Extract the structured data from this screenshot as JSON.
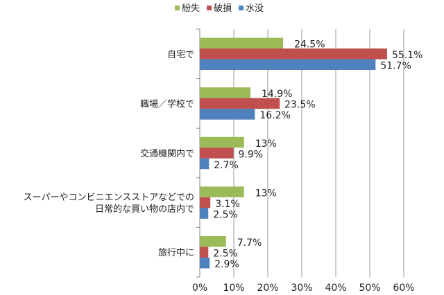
{
  "chart_data": {
    "type": "bar",
    "orientation": "horizontal",
    "categories": [
      "自宅で",
      "職場／学校で",
      "交通機関内で",
      "スーパーやコンビニエンスストアなどでの\n日常的な買い物の店内で",
      "旅行中に"
    ],
    "series": [
      {
        "name": "紛失",
        "color": "#9BBB59",
        "values": [
          24.5,
          14.9,
          13,
          13,
          7.7
        ]
      },
      {
        "name": "破損",
        "color": "#C0504D",
        "values": [
          55.1,
          23.5,
          9.9,
          3.1,
          2.5
        ]
      },
      {
        "name": "水没",
        "color": "#4F81BD",
        "values": [
          51.7,
          16.2,
          2.7,
          2.5,
          2.9
        ]
      }
    ],
    "data_labels": [
      [
        "24.5%",
        "14.9%",
        "13%",
        "13%",
        "7.7%"
      ],
      [
        "55.1%",
        "23.5%",
        "9.9%",
        "3.1%",
        "2.5%"
      ],
      [
        "51.7%",
        "16.2%",
        "2.7%",
        "2.5%",
        "2.9%"
      ]
    ],
    "xlim": [
      0,
      60
    ],
    "xticks": [
      "0%",
      "10%",
      "20%",
      "30%",
      "40%",
      "50%",
      "60%"
    ],
    "grid": true,
    "legend": "top"
  }
}
